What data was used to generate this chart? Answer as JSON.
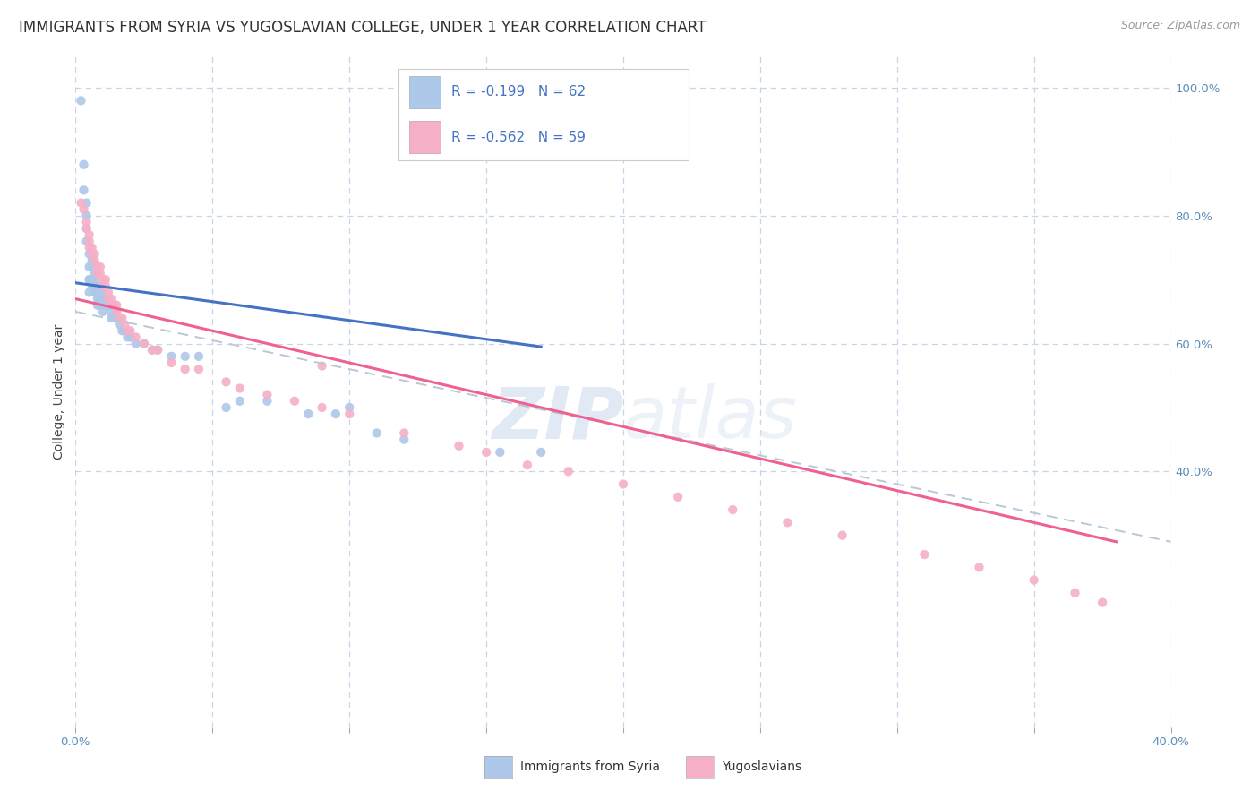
{
  "title": "IMMIGRANTS FROM SYRIA VS YUGOSLAVIAN COLLEGE, UNDER 1 YEAR CORRELATION CHART",
  "source": "Source: ZipAtlas.com",
  "ylabel": "College, Under 1 year",
  "legend_label1": "Immigrants from Syria",
  "legend_label2": "Yugoslavians",
  "legend_R1": "R = -0.199",
  "legend_N1": "N = 62",
  "legend_R2": "R = -0.562",
  "legend_N2": "N = 59",
  "color_syria": "#adc8e8",
  "color_yugoslav": "#f5b0c8",
  "color_line_syria": "#4472c4",
  "color_line_yugoslav": "#f06090",
  "color_line_dashed": "#b8c8d8",
  "xlim": [
    0.0,
    0.4
  ],
  "ylim": [
    0.0,
    1.05
  ],
  "background_color": "#ffffff",
  "grid_color": "#c8d4e8",
  "watermark_zip": "ZIP",
  "watermark_atlas": "atlas",
  "title_fontsize": 12,
  "source_fontsize": 9,
  "axis_label_fontsize": 10,
  "tick_fontsize": 9.5,
  "tick_color": "#5b8db8",
  "syria_x": [
    0.002,
    0.003,
    0.003,
    0.004,
    0.004,
    0.004,
    0.004,
    0.005,
    0.005,
    0.005,
    0.005,
    0.005,
    0.006,
    0.006,
    0.006,
    0.006,
    0.007,
    0.007,
    0.007,
    0.007,
    0.007,
    0.008,
    0.008,
    0.008,
    0.008,
    0.009,
    0.009,
    0.009,
    0.01,
    0.01,
    0.01,
    0.01,
    0.011,
    0.011,
    0.012,
    0.013,
    0.013,
    0.014,
    0.015,
    0.015,
    0.016,
    0.017,
    0.018,
    0.019,
    0.02,
    0.022,
    0.025,
    0.028,
    0.03,
    0.035,
    0.04,
    0.045,
    0.055,
    0.06,
    0.07,
    0.085,
    0.095,
    0.1,
    0.11,
    0.12,
    0.155,
    0.17
  ],
  "syria_y": [
    0.98,
    0.88,
    0.84,
    0.82,
    0.8,
    0.78,
    0.76,
    0.74,
    0.72,
    0.7,
    0.7,
    0.68,
    0.73,
    0.72,
    0.7,
    0.69,
    0.72,
    0.71,
    0.7,
    0.69,
    0.68,
    0.69,
    0.68,
    0.67,
    0.66,
    0.68,
    0.67,
    0.66,
    0.68,
    0.67,
    0.66,
    0.65,
    0.67,
    0.66,
    0.66,
    0.65,
    0.64,
    0.64,
    0.65,
    0.64,
    0.63,
    0.62,
    0.62,
    0.61,
    0.61,
    0.6,
    0.6,
    0.59,
    0.59,
    0.58,
    0.58,
    0.58,
    0.5,
    0.51,
    0.51,
    0.49,
    0.49,
    0.5,
    0.46,
    0.45,
    0.43,
    0.43
  ],
  "yugoslav_x": [
    0.002,
    0.003,
    0.004,
    0.004,
    0.005,
    0.005,
    0.005,
    0.006,
    0.006,
    0.007,
    0.007,
    0.008,
    0.008,
    0.009,
    0.009,
    0.01,
    0.01,
    0.011,
    0.011,
    0.012,
    0.012,
    0.013,
    0.014,
    0.015,
    0.015,
    0.016,
    0.017,
    0.018,
    0.019,
    0.02,
    0.022,
    0.025,
    0.028,
    0.03,
    0.035,
    0.04,
    0.045,
    0.055,
    0.06,
    0.07,
    0.08,
    0.09,
    0.1,
    0.12,
    0.14,
    0.15,
    0.165,
    0.18,
    0.2,
    0.22,
    0.24,
    0.26,
    0.28,
    0.31,
    0.33,
    0.35,
    0.365,
    0.375,
    0.09
  ],
  "yugoslav_y": [
    0.82,
    0.81,
    0.79,
    0.78,
    0.77,
    0.76,
    0.75,
    0.75,
    0.74,
    0.74,
    0.73,
    0.72,
    0.71,
    0.72,
    0.71,
    0.7,
    0.69,
    0.7,
    0.69,
    0.68,
    0.67,
    0.67,
    0.66,
    0.66,
    0.65,
    0.64,
    0.64,
    0.63,
    0.62,
    0.62,
    0.61,
    0.6,
    0.59,
    0.59,
    0.57,
    0.56,
    0.56,
    0.54,
    0.53,
    0.52,
    0.51,
    0.5,
    0.49,
    0.46,
    0.44,
    0.43,
    0.41,
    0.4,
    0.38,
    0.36,
    0.34,
    0.32,
    0.3,
    0.27,
    0.25,
    0.23,
    0.21,
    0.195,
    0.565
  ],
  "syria_line_x": [
    0.0,
    0.17
  ],
  "syria_line_y": [
    0.695,
    0.595
  ],
  "yugoslav_line_x": [
    0.0,
    0.38
  ],
  "yugoslav_line_y": [
    0.67,
    0.29
  ],
  "dashed_line_x": [
    0.0,
    0.4
  ],
  "dashed_line_y": [
    0.65,
    0.29
  ]
}
